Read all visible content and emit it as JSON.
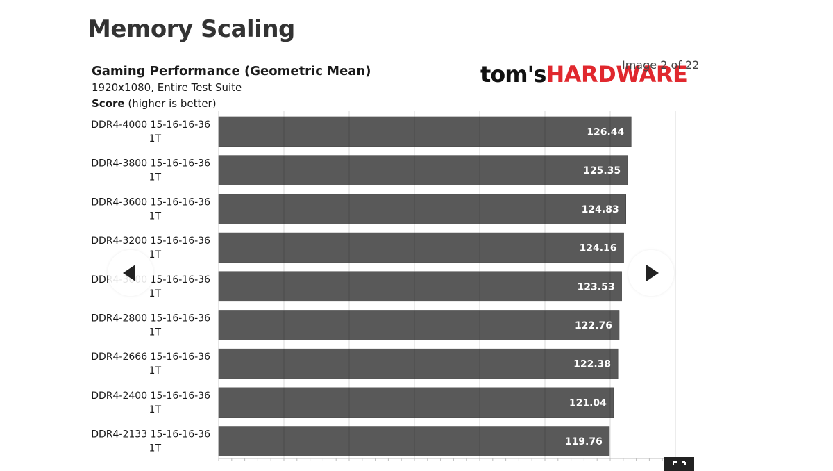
{
  "page": {
    "title": "Memory Scaling",
    "image_counter": "Image 2 of 22"
  },
  "logo": {
    "part1": "tom's",
    "part2": "HARDWARE"
  },
  "nav": {
    "prev_icon": "chevron-left-icon",
    "next_icon": "chevron-right-icon",
    "expand_icon": "expand-icon"
  },
  "chart_data": {
    "type": "bar",
    "orientation": "horizontal",
    "title": "Gaming Performance (Geometric Mean)",
    "subtitle": "1920x1080, Entire Test Suite",
    "score_label": "Score",
    "score_note": " (higher is better)",
    "categories": [
      [
        "DDR4-4000 15-16-16-36",
        "1T"
      ],
      [
        "DDR4-3800 15-16-16-36",
        "1T"
      ],
      [
        "DDR4-3600 15-16-16-36",
        "1T"
      ],
      [
        "DDR4-3200 15-16-16-36",
        "1T"
      ],
      [
        "DDR4-3000 15-16-16-36",
        "1T"
      ],
      [
        "DDR4-2800 15-16-16-36",
        "1T"
      ],
      [
        "DDR4-2666 15-16-16-36",
        "1T"
      ],
      [
        "DDR4-2400 15-16-16-36",
        "1T"
      ],
      [
        "DDR4-2133 15-16-16-36",
        "1T"
      ]
    ],
    "values": [
      126.44,
      125.35,
      124.83,
      124.16,
      123.53,
      122.76,
      122.38,
      121.04,
      119.76
    ],
    "value_labels": [
      "126.44",
      "125.35",
      "124.83",
      "124.16",
      "123.53",
      "122.76",
      "122.38",
      "121.04",
      "119.76"
    ],
    "xlim": [
      0,
      140
    ],
    "grid": true,
    "bar_color": "#595959",
    "label_color": "#ffffff"
  }
}
